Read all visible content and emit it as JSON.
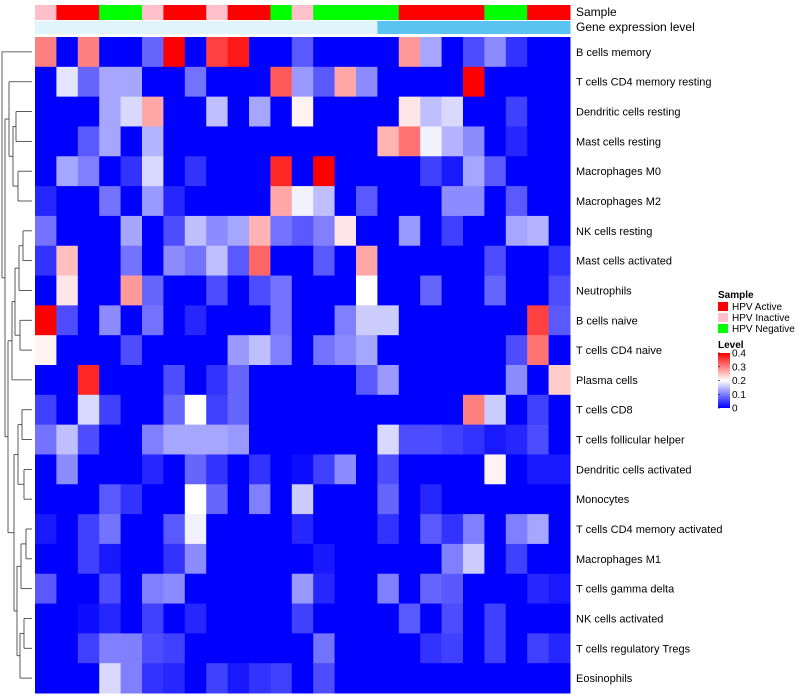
{
  "chart_data": {
    "type": "heatmap",
    "annotation_rows": [
      "Sample",
      "Gene expression level"
    ],
    "sample_groups": [
      "Inactive",
      "Active",
      "Active",
      "Negative",
      "Negative",
      "Inactive",
      "Active",
      "Active",
      "Inactive",
      "Active",
      "Active",
      "Negative",
      "Inactive",
      "Negative",
      "Negative",
      "Negative",
      "Negative",
      "Active",
      "Active",
      "Active",
      "Active",
      "Negative",
      "Negative",
      "Active",
      "Active"
    ],
    "gene_expression_level_row": [
      0,
      0,
      0,
      0,
      0,
      0,
      0,
      0,
      0,
      0,
      0,
      0,
      0,
      0,
      0,
      0,
      1,
      1,
      1,
      1,
      1,
      1,
      1,
      1,
      1
    ],
    "rows": [
      "B cells memory",
      "T cells CD4 memory resting",
      "Dendritic cells resting",
      "Mast cells resting",
      "Macrophages M0",
      "Macrophages M2",
      "NK cells resting",
      "Mast cells activated",
      "Neutrophils",
      "B cells naive",
      "T cells CD4 naive",
      "Plasma cells",
      "T cells CD8",
      "T cells follicular helper",
      "Dendritic cells activated",
      "Monocytes",
      "T cells CD4 memory activated",
      "Macrophages M1",
      "T cells gamma delta",
      "NK cells activated",
      "T cells regulatory  Tregs",
      "Eosinophils"
    ],
    "values": [
      [
        0.3,
        0,
        0.3,
        0,
        0,
        0.08,
        0.4,
        0,
        0.35,
        0.38,
        0,
        0,
        0.07,
        0,
        0,
        0,
        0,
        0.28,
        0.13,
        0,
        0.06,
        0.11,
        0.04,
        0,
        0
      ],
      [
        0,
        0.18,
        0.08,
        0.13,
        0.13,
        0,
        0,
        0.09,
        0,
        0,
        0,
        0.33,
        0.12,
        0.07,
        0.27,
        0.11,
        0,
        0,
        0,
        0,
        0.4,
        0,
        0,
        0,
        0
      ],
      [
        0,
        0,
        0,
        0.13,
        0.17,
        0.27,
        0,
        0,
        0.15,
        0,
        0.13,
        0,
        0.21,
        0,
        0,
        0,
        0,
        0.22,
        0.15,
        0.17,
        0,
        0,
        0.05,
        0,
        0
      ],
      [
        0,
        0,
        0.07,
        0.13,
        0,
        0.14,
        0,
        0,
        0,
        0,
        0,
        0,
        0,
        0,
        0,
        0,
        0.26,
        0.31,
        0.19,
        0.14,
        0.11,
        0,
        0.03,
        0,
        0
      ],
      [
        0,
        0.13,
        0.1,
        0,
        0.04,
        0.17,
        0,
        0.04,
        0,
        0,
        0,
        0.37,
        0,
        0.4,
        0,
        0,
        0,
        0,
        0.05,
        0.02,
        0.13,
        0.07,
        0,
        0,
        0
      ],
      [
        0.03,
        0,
        0,
        0.09,
        0,
        0.12,
        0.03,
        0,
        0,
        0,
        0,
        0.27,
        0.19,
        0.15,
        0,
        0.07,
        0,
        0,
        0,
        0.11,
        0.11,
        0,
        0.07,
        0,
        0
      ],
      [
        0.09,
        0,
        0,
        0,
        0.13,
        0,
        0.06,
        0.15,
        0.11,
        0.13,
        0.26,
        0.09,
        0.07,
        0.1,
        0.22,
        0,
        0,
        0.12,
        0,
        0.05,
        0,
        0,
        0.13,
        0.14,
        0
      ],
      [
        0.04,
        0.25,
        0,
        0,
        0.09,
        0,
        0.11,
        0.09,
        0.15,
        0.07,
        0.32,
        0,
        0,
        0.07,
        0,
        0.27,
        0,
        0,
        0,
        0,
        0,
        0.06,
        0,
        0,
        0.04
      ],
      [
        0,
        0.22,
        0,
        0,
        0.28,
        0.08,
        0,
        0,
        0.06,
        0,
        0.06,
        0.09,
        0,
        0,
        0,
        0.2,
        0,
        0,
        0.08,
        0,
        0,
        0.08,
        0,
        0,
        0.06
      ],
      [
        0.4,
        0.06,
        0,
        0.11,
        0,
        0.09,
        0,
        0.03,
        0,
        0,
        0,
        0.09,
        0,
        0,
        0.1,
        0.16,
        0.16,
        0,
        0,
        0,
        0,
        0,
        0,
        0.35,
        0.07
      ],
      [
        0.21,
        0,
        0,
        0,
        0.06,
        0,
        0,
        0,
        0,
        0.12,
        0.15,
        0.1,
        0,
        0.09,
        0.11,
        0.13,
        0,
        0,
        0,
        0,
        0,
        0,
        0.06,
        0.31,
        0
      ],
      [
        0,
        0,
        0.37,
        0,
        0,
        0,
        0.06,
        0,
        0.04,
        0.08,
        0,
        0,
        0,
        0,
        0,
        0.07,
        0.12,
        0,
        0,
        0,
        0,
        0,
        0.11,
        0,
        0.24
      ],
      [
        0.05,
        0,
        0.17,
        0.05,
        0,
        0,
        0.08,
        0.2,
        0.05,
        0.08,
        0,
        0,
        0,
        0,
        0,
        0,
        0,
        0,
        0,
        0,
        0.3,
        0.16,
        0,
        0.05,
        0
      ],
      [
        0.09,
        0.15,
        0.06,
        0,
        0,
        0.1,
        0.13,
        0.13,
        0.13,
        0.12,
        0,
        0,
        0,
        0,
        0,
        0,
        0.17,
        0.06,
        0.06,
        0.05,
        0.04,
        0.02,
        0.03,
        0.06,
        0
      ],
      [
        0,
        0.11,
        0,
        0,
        0,
        0.03,
        0,
        0.08,
        0.04,
        0,
        0.04,
        0,
        0.01,
        0.05,
        0.11,
        0,
        0.06,
        0,
        0,
        0,
        0,
        0.21,
        0,
        0.02,
        0.02
      ],
      [
        0,
        0,
        0,
        0.07,
        0.04,
        0,
        0,
        0.2,
        0.08,
        0,
        0.1,
        0,
        0.16,
        0,
        0,
        0,
        0.08,
        0,
        0.03,
        0,
        0,
        0,
        0,
        0,
        0
      ],
      [
        0.02,
        0,
        0.05,
        0.09,
        0,
        0,
        0.07,
        0.19,
        0,
        0,
        0,
        0,
        0.03,
        0,
        0,
        0,
        0.04,
        0,
        0.07,
        0.04,
        0.1,
        0,
        0.1,
        0.13,
        0
      ],
      [
        0,
        0,
        0.05,
        0.02,
        0,
        0,
        0.04,
        0.11,
        0,
        0,
        0,
        0,
        0,
        0.02,
        0,
        0,
        0,
        0,
        0,
        0.1,
        0.16,
        0,
        0.05,
        0,
        0
      ],
      [
        0.07,
        0,
        0,
        0.06,
        0,
        0.1,
        0.11,
        0,
        0,
        0,
        0,
        0,
        0.12,
        0.03,
        0,
        0,
        0.1,
        0,
        0.08,
        0.07,
        0,
        0,
        0,
        0.03,
        0.02
      ],
      [
        0,
        0,
        0.01,
        0.03,
        0,
        0.05,
        0,
        0.03,
        0,
        0,
        0,
        0,
        0.05,
        0,
        0,
        0,
        0,
        0.07,
        0,
        0.06,
        0,
        0.05,
        0,
        0,
        0
      ],
      [
        0,
        0,
        0.05,
        0.1,
        0.1,
        0.06,
        0.05,
        0,
        0,
        0,
        0,
        0,
        0,
        0.09,
        0,
        0,
        0,
        0,
        0.04,
        0.05,
        0,
        0.05,
        0,
        0.05,
        0.03
      ],
      [
        0,
        0,
        0,
        0.17,
        0.1,
        0.04,
        0.03,
        0,
        0.05,
        0.02,
        0.04,
        0.05,
        0,
        0.06,
        0,
        0,
        0,
        0,
        0,
        0,
        0,
        0,
        0,
        0,
        0
      ]
    ],
    "value_range": [
      0,
      0.4
    ],
    "legend": {
      "sample_title": "Sample",
      "sample_items": [
        {
          "label": "HPV Active",
          "color": "#ff0000"
        },
        {
          "label": "HPV Inactive",
          "color": "#ffc0cb"
        },
        {
          "label": "HPV Negative",
          "color": "#00ff00"
        }
      ],
      "level_title": "Level",
      "level_ticks": [
        "0.4",
        "0.3",
        "0.2",
        "0.1",
        "0"
      ],
      "level_tick_values": [
        0.4,
        0.3,
        0.2,
        0.1,
        0
      ]
    },
    "colors": {
      "low": "#0000ff",
      "mid": "#ffffff",
      "high": "#ff0000",
      "group_Active": "#ff0000",
      "group_Inactive": "#ffc0cb",
      "group_Negative": "#00ff00",
      "expression_low": "#e0f4fc",
      "expression_high": "#5bc3ef"
    }
  }
}
